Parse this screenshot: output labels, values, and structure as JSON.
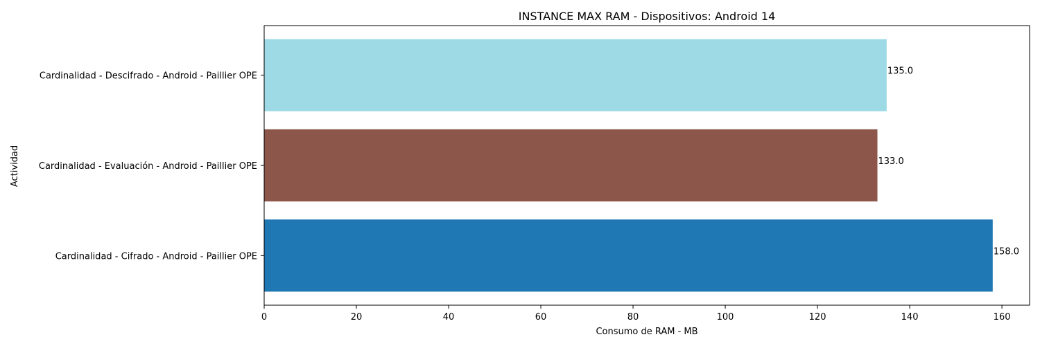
{
  "chart_data": {
    "type": "bar",
    "orientation": "horizontal",
    "title": "INSTANCE MAX RAM - Dispositivos: Android 14",
    "xlabel": "Consumo de RAM - MB",
    "ylabel": "Actividad",
    "xlim": [
      0,
      166
    ],
    "xticks": [
      0,
      20,
      40,
      60,
      80,
      100,
      120,
      140,
      160
    ],
    "grid": false,
    "categories": [
      "Cardinalidad - Cifrado - Android - Paillier OPE",
      "Cardinalidad - Evaluación - Android - Paillier OPE",
      "Cardinalidad - Descifrado - Android - Paillier OPE"
    ],
    "values": [
      158.0,
      133.0,
      135.0
    ],
    "value_labels": [
      "158.0",
      "133.0",
      "135.0"
    ],
    "colors": [
      "#1f77b4",
      "#8c564b",
      "#9edae5"
    ]
  }
}
